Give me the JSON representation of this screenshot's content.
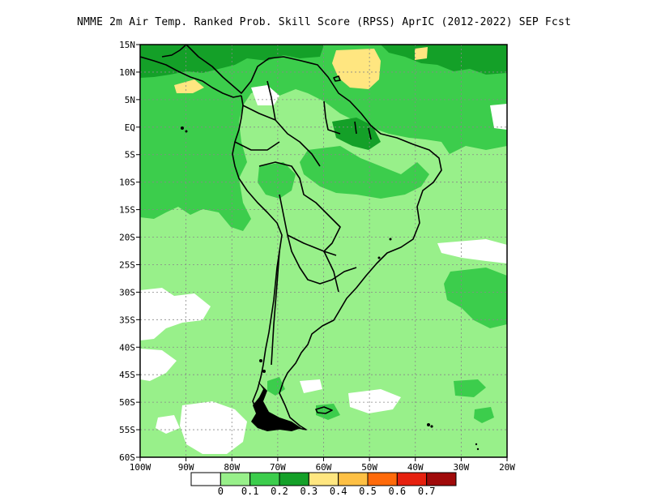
{
  "title": "NMME  2m Air Temp. Ranked Prob. Skill Score (RPSS) AprIC (2012-2022) SEP Fcst",
  "map": {
    "region": "South America",
    "lat_labels": [
      "15N",
      "10N",
      "5N",
      "EQ",
      "5S",
      "10S",
      "15S",
      "20S",
      "25S",
      "30S",
      "35S",
      "40S",
      "45S",
      "50S",
      "55S",
      "60S"
    ],
    "lon_labels": [
      "100W",
      "90W",
      "80W",
      "70W",
      "60W",
      "50W",
      "40W",
      "30W",
      "20W"
    ],
    "grid": true
  },
  "colorbar": {
    "colors": [
      "#ffffff",
      "#98f08a",
      "#3ccd4c",
      "#14a028",
      "#ffe680",
      "#fec044",
      "#ff6a0a",
      "#e6200e",
      "#a00a0a"
    ],
    "labels": [
      "0",
      "0.1",
      "0.2",
      "0.3",
      "0.4",
      "0.5",
      "0.6",
      "0.7"
    ]
  }
}
